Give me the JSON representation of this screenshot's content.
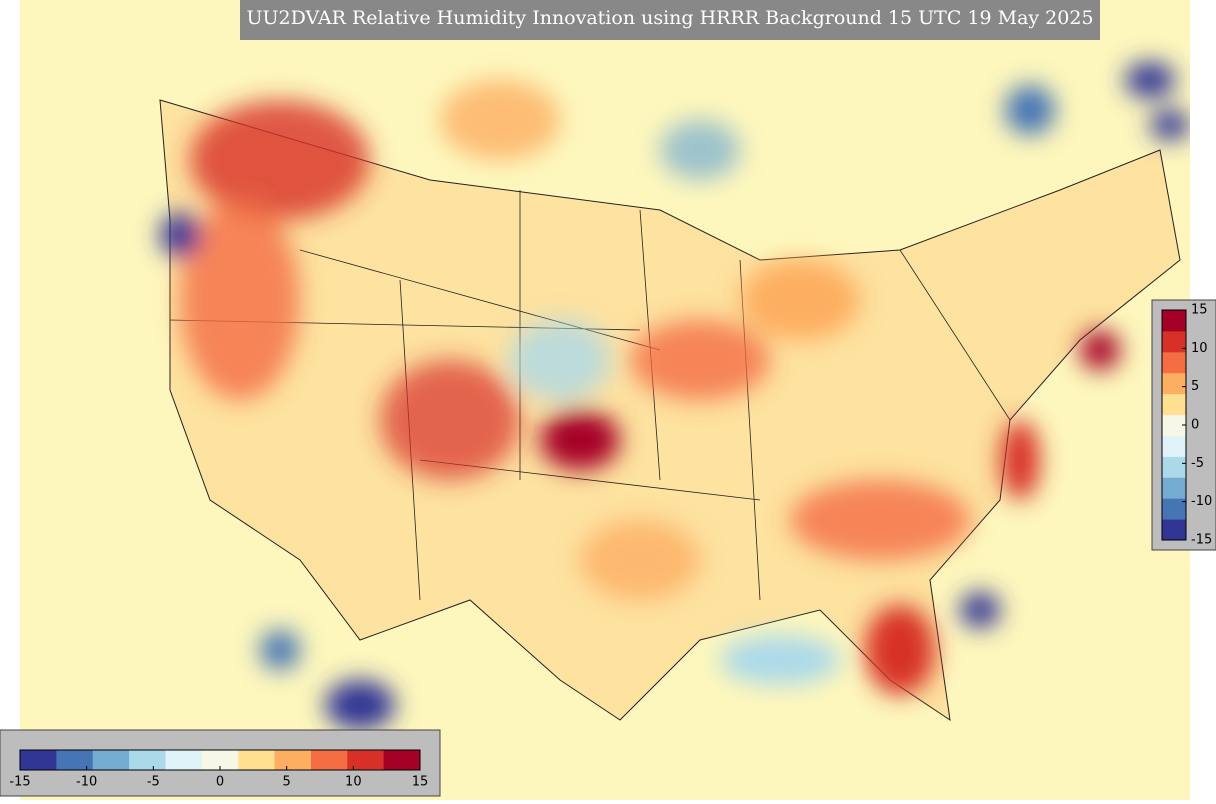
{
  "title": "UU2DVAR Relative Humidity Innovation using HRRR Background 15 UTC 19 May 2025",
  "colorbar_vertical": {
    "range": [
      -15,
      15
    ],
    "ticks": [
      15,
      10,
      5,
      0,
      -5,
      -10,
      -15
    ]
  },
  "colorbar_horizontal": {
    "range": [
      -15,
      15
    ],
    "ticks": [
      -15,
      -10,
      -5,
      0,
      5,
      10,
      15
    ]
  },
  "colors": [
    "#313695",
    "#4575b4",
    "#74add1",
    "#abd9e9",
    "#e0f3f8",
    "#f7f7e8",
    "#fee090",
    "#fdae61",
    "#f46d43",
    "#d73027",
    "#a50026"
  ]
}
